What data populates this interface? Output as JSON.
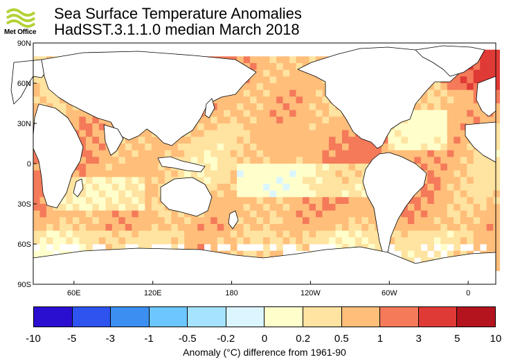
{
  "header": {
    "logo_text": "Met Office",
    "title_line1": "Sea Surface Temperature Anomalies",
    "title_line2": "HadSST.3.1.1.0 median March 2018"
  },
  "map": {
    "lat_labels": [
      "90N",
      "60N",
      "30N",
      "0",
      "30S",
      "60S",
      "90S"
    ],
    "lon_labels": [
      "60E",
      "120E",
      "180",
      "120W",
      "60W",
      "0"
    ],
    "lon_range": [
      29,
      381
    ],
    "lat_range": [
      -90,
      90
    ],
    "land_color": "#ffffff",
    "missing_color": "#ffffff",
    "coastline_color": "#000000"
  },
  "colorbar": {
    "tick_labels": [
      "-10",
      "-5",
      "-3",
      "-1",
      "-0.5",
      "-0.2",
      "0",
      "0.2",
      "0.5",
      "1",
      "3",
      "5",
      "10"
    ],
    "colors": [
      "#2a0fd0",
      "#2e54f0",
      "#3c8ff0",
      "#6cc6ff",
      "#a6e3ff",
      "#dcf6ff",
      "#ffffcc",
      "#ffe3a0",
      "#ffbe7a",
      "#f47a5a",
      "#e03a36",
      "#b3141e"
    ],
    "caption": "Anomaly (°C) difference from 1961-90"
  }
}
